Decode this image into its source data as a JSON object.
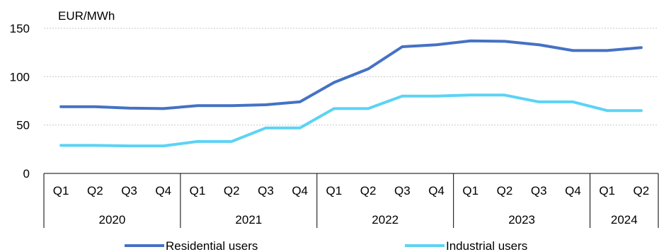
{
  "chart_data": {
    "type": "line",
    "ylabel": "EUR/MWh",
    "ylim": [
      0,
      150
    ],
    "yticks": [
      0,
      50,
      100,
      150
    ],
    "grid": true,
    "legend_position": "bottom",
    "quarters": [
      "Q1",
      "Q2",
      "Q3",
      "Q4",
      "Q1",
      "Q2",
      "Q3",
      "Q4",
      "Q1",
      "Q2",
      "Q3",
      "Q4",
      "Q1",
      "Q2",
      "Q3",
      "Q4",
      "Q1",
      "Q2"
    ],
    "years": [
      {
        "label": "2020",
        "quarters": 4
      },
      {
        "label": "2021",
        "quarters": 4
      },
      {
        "label": "2022",
        "quarters": 4
      },
      {
        "label": "2023",
        "quarters": 4
      },
      {
        "label": "2024",
        "quarters": 2
      }
    ],
    "series": [
      {
        "name": "Residential users",
        "color": "#4472c4",
        "values": [
          69,
          69,
          67.5,
          67,
          70,
          70,
          71,
          74,
          94,
          108,
          131,
          133,
          137,
          136.5,
          133,
          127,
          127,
          130
        ]
      },
      {
        "name": "Industrial users",
        "color": "#5bd3f5",
        "values": [
          29,
          29,
          28.5,
          28.5,
          33,
          33,
          47,
          47,
          67,
          67,
          80,
          80,
          81,
          81,
          74,
          74,
          65,
          65
        ]
      }
    ]
  }
}
